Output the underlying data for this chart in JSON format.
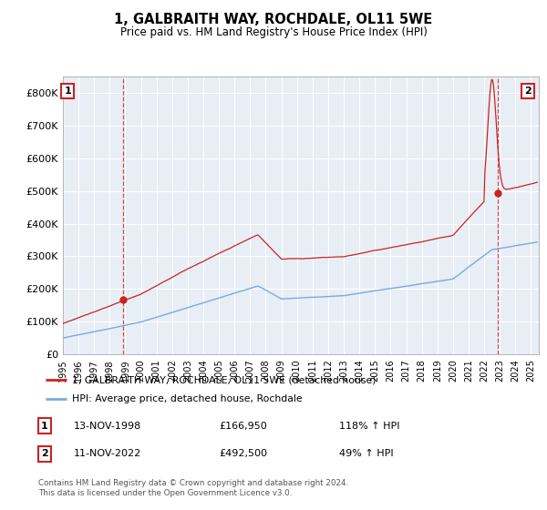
{
  "title": "1, GALBRAITH WAY, ROCHDALE, OL11 5WE",
  "subtitle": "Price paid vs. HM Land Registry's House Price Index (HPI)",
  "background_color": "#ffffff",
  "plot_bg_color": "#e8eef5",
  "grid_color": "#ffffff",
  "hpi_line_color": "#7aaadd",
  "price_line_color": "#cc2222",
  "marker_color": "#cc2222",
  "sale1_price": 166950,
  "sale1_marker_x": 1998.87,
  "sale2_price": 492500,
  "sale2_marker_x": 2022.87,
  "ylim": [
    0,
    850000
  ],
  "xlim": [
    1995.0,
    2025.5
  ],
  "yticks": [
    0,
    100000,
    200000,
    300000,
    400000,
    500000,
    600000,
    700000,
    800000
  ],
  "ytick_labels": [
    "£0",
    "£100K",
    "£200K",
    "£300K",
    "£400K",
    "£500K",
    "£600K",
    "£700K",
    "£800K"
  ],
  "xtick_years": [
    1995,
    1996,
    1997,
    1998,
    1999,
    2000,
    2001,
    2002,
    2003,
    2004,
    2005,
    2006,
    2007,
    2008,
    2009,
    2010,
    2011,
    2012,
    2013,
    2014,
    2015,
    2016,
    2017,
    2018,
    2019,
    2020,
    2021,
    2022,
    2023,
    2024,
    2025
  ],
  "legend_line1": "1, GALBRAITH WAY, ROCHDALE, OL11 5WE (detached house)",
  "legend_line2": "HPI: Average price, detached house, Rochdale",
  "table_row1_num": "1",
  "table_row1_date": "13-NOV-1998",
  "table_row1_price": "£166,950",
  "table_row1_hpi": "118% ↑ HPI",
  "table_row2_num": "2",
  "table_row2_date": "11-NOV-2022",
  "table_row2_price": "£492,500",
  "table_row2_hpi": "49% ↑ HPI",
  "footer": "Contains HM Land Registry data © Crown copyright and database right 2024.\nThis data is licensed under the Open Government Licence v3.0."
}
